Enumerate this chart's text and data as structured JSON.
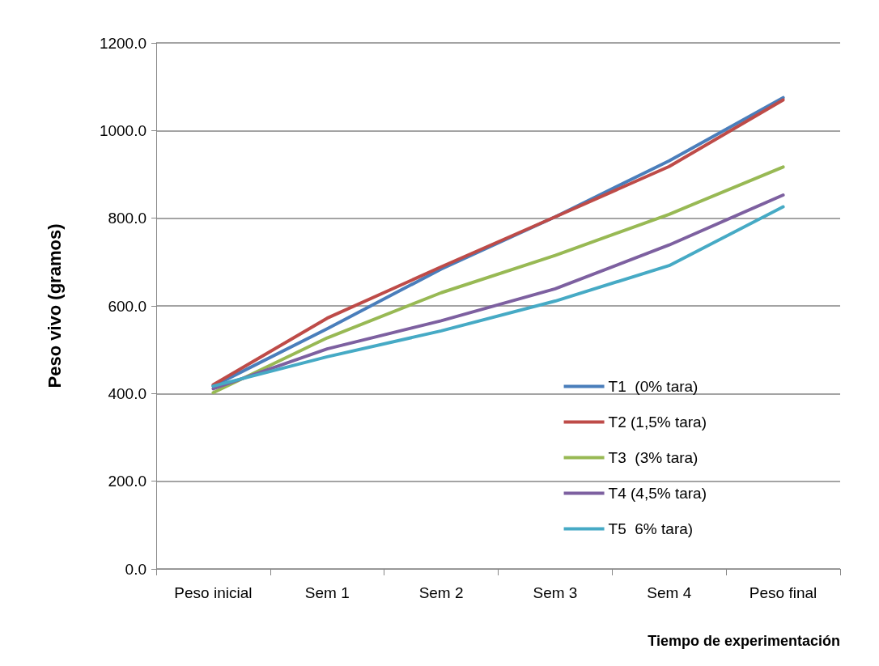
{
  "chart_data": {
    "type": "line",
    "xlabel": "Tiempo de experimentación",
    "ylabel": "Peso vivo (gramos)",
    "categories": [
      "Peso inicial",
      "Sem 1",
      "Sem 2",
      "Sem 3",
      "Sem 4",
      "Peso final"
    ],
    "series": [
      {
        "name": "T1  (0% tara)",
        "color": "#4a7ebb",
        "values": [
          417,
          548,
          684,
          803,
          931,
          1075
        ]
      },
      {
        "name": "T2 (1,5% tara)",
        "color": "#be4b48",
        "values": [
          420,
          572,
          689,
          803,
          918,
          1070
        ]
      },
      {
        "name": "T3  (3% tara)",
        "color": "#98b954",
        "values": [
          402,
          527,
          630,
          715,
          809,
          917
        ]
      },
      {
        "name": "T4 (4,5% tara)",
        "color": "#7d60a0",
        "values": [
          411,
          502,
          566,
          639,
          739,
          853
        ]
      },
      {
        "name": "T5  6% tara)",
        "color": "#46aac5",
        "values": [
          417,
          484,
          543,
          611,
          692,
          826
        ]
      }
    ],
    "ylim": [
      0,
      1200
    ],
    "yticks": [
      {
        "value": 0,
        "label": "0.0"
      },
      {
        "value": 200,
        "label": "200.0"
      },
      {
        "value": 400,
        "label": "400.0"
      },
      {
        "value": 600,
        "label": "600.0"
      },
      {
        "value": 800,
        "label": "800.0"
      },
      {
        "value": 1000,
        "label": "1000.0"
      },
      {
        "value": 1200,
        "label": "1200.0"
      }
    ],
    "grid": "y",
    "legend": "right",
    "marker": "none",
    "line_style": "solid"
  }
}
